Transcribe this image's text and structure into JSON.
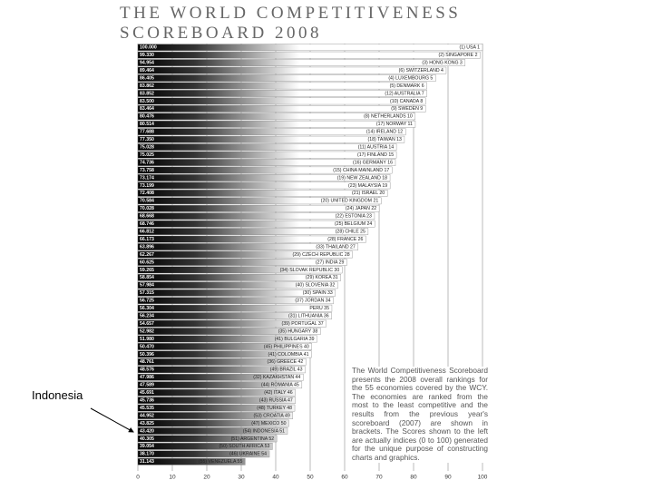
{
  "chart_data": {
    "type": "bar",
    "orientation": "horizontal",
    "title": "THE WORLD COMPETITIVENESS",
    "subtitle": "SCOREBOARD 2008",
    "categories": [
      "(1) USA 1",
      "(2) SINGAPORE 2",
      "(3) HONG KONG 3",
      "(6) SWITZERLAND 4",
      "(4) LUXEMBOURG 5",
      "(5) DENMARK 6",
      "(12) AUSTRALIA 7",
      "(10) CANADA 8",
      "(9) SWEDEN 9",
      "(8) NETHERLANDS 10",
      "(17) NORWAY 11",
      "(14) IRELAND 12",
      "(18) TAIWAN 13",
      "(11) AUSTRIA 14",
      "(17) FINLAND 15",
      "(16) GERMANY 16",
      "(15) CHINA MAINLAND 17",
      "(19) NEW ZEALAND 18",
      "(23) MALAYSIA 19",
      "(21) ISRAEL 20",
      "(20) UNITED KINGDOM 21",
      "(24) JAPAN 22",
      "(22) ESTONIA 23",
      "(25) BELGIUM 24",
      "(28) CHILE 25",
      "(28) FRANCE 26",
      "(33) THAILAND 27",
      "(29) CZECH REPUBLIC 28",
      "(27) INDIA 29",
      "(34) SLOVAK REPUBLIC 30",
      "(29) KOREA 31",
      "(40) SLOVENIA 32",
      "(30) SPAIN 33",
      "(37) JORDAN 34",
      "PERU 35",
      "(31) LITHUANIA 36",
      "(39) PORTUGAL 37",
      "(35) HUNGARY 38",
      "(41) BULGARIA 39",
      "(45) PHILIPPINES 40",
      "(41) COLOMBIA 41",
      "(36) GREECE 42",
      "(49) BRAZIL 43",
      "(32) KAZAKHSTAN 44",
      "(44) ROMANIA 45",
      "(42) ITALY 46",
      "(43) RUSSIA 47",
      "(48) TURKEY 48",
      "(53) CROATIA 49",
      "(47) MEXICO 50",
      "(54) INDONESIA 51",
      "(51) ARGENTINA 52",
      "(50) SOUTH AFRICA 53",
      "(46) UKRAINE 54",
      "(55) VENEZUELA 55"
    ],
    "values": [
      100.0,
      99.33,
      94.954,
      89.464,
      86.405,
      83.862,
      83.852,
      83.5,
      83.464,
      80.476,
      80.514,
      77.688,
      77.35,
      75.028,
      75.025,
      74.736,
      73.758,
      73.174,
      73.199,
      72.408,
      70.584,
      70.028,
      68.668,
      68.746,
      66.812,
      66.173,
      63.896,
      62.267,
      60.625,
      59.265,
      58.854,
      57.984,
      57.315,
      56.725,
      56.304,
      56.234,
      54.657,
      52.982,
      51.98,
      50.47,
      50.396,
      48.761,
      48.576,
      47.986,
      47.589,
      45.691,
      45.736,
      45.535,
      44.952,
      43.825,
      43.42,
      40.305,
      39.054,
      38.17,
      31.143
    ],
    "value_labels": [
      "100.000",
      "99.330",
      "94.954",
      "89.464",
      "86.405",
      "83.862",
      "83.852",
      "83.500",
      "83.464",
      "80.476",
      "80.514",
      "77.688",
      "77.350",
      "75.028",
      "75.025",
      "74.736",
      "73.758",
      "73.174",
      "73.199",
      "72.408",
      "70.584",
      "70.028",
      "68.668",
      "68.746",
      "66.812",
      "66.173",
      "63.896",
      "62.267",
      "60.625",
      "59.265",
      "58.854",
      "57.984",
      "57.315",
      "56.725",
      "56.304",
      "56.234",
      "54.657",
      "52.982",
      "51.980",
      "50.470",
      "50.396",
      "48.761",
      "48.576",
      "47.986",
      "47.589",
      "45.691",
      "45.736",
      "45.535",
      "44.952",
      "43.825",
      "43.420",
      "40.305",
      "39.054",
      "38.170",
      "31.143"
    ],
    "xlim": [
      0,
      100
    ],
    "xticks": [
      0,
      10,
      20,
      30,
      40,
      50,
      60,
      70,
      80,
      90,
      100
    ],
    "grid": true,
    "color": "#000000",
    "note": "The World Competitiveness Scoreboard presents the 2008 overall rankings for the 55 economies covered by the WCY. The economies are ranked from the most to the least competitive and the results from the previous year's scoreboard (2007) are shown in brackets. The Scores shown to the left are actually indices (0 to 100) generated for the unique purpose of constructing charts and graphics.",
    "callout": "Indonesia"
  }
}
